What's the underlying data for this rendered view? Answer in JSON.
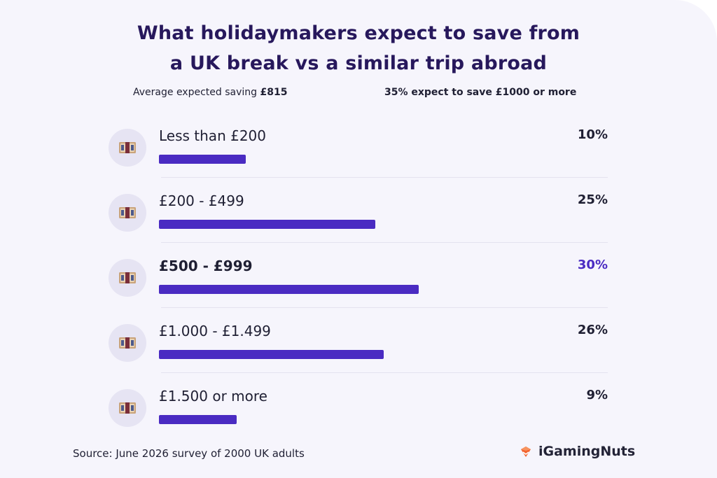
{
  "header": {
    "title_line1": "What holidaymakers expect to save from",
    "title_line2": "a UK break vs a similar trip abroad"
  },
  "stats": {
    "left_prefix": "Average expected saving ",
    "left_value": "£815",
    "right": "35% expect to save £1000 or more"
  },
  "chart_data": {
    "type": "bar",
    "orientation": "horizontal",
    "title": "What holidaymakers expect to save from a UK break vs a similar trip abroad",
    "categories": [
      "Less than £200",
      "£200 - £499",
      "£500 - £999",
      "£1.000 - £1.499",
      "£1.500 or more"
    ],
    "values": [
      10,
      25,
      30,
      26,
      9
    ],
    "value_labels": [
      "10%",
      "25%",
      "30%",
      "26%",
      "9%"
    ],
    "highlight_index": 2,
    "xlim": [
      0,
      40
    ],
    "bar_color": "#4a2bc2",
    "highlight_text_color": "#4a2bc2"
  },
  "rows": [
    {
      "icon": "money-icon"
    },
    {
      "icon": "money-icon"
    },
    {
      "icon": "money-icon"
    },
    {
      "icon": "money-icon"
    },
    {
      "icon": "money-icon"
    }
  ],
  "footer": {
    "source": "Source: June 2026 survey of 2000 UK adults",
    "brand": "iGamingNuts",
    "brand_icon": "nut-logo-icon"
  }
}
